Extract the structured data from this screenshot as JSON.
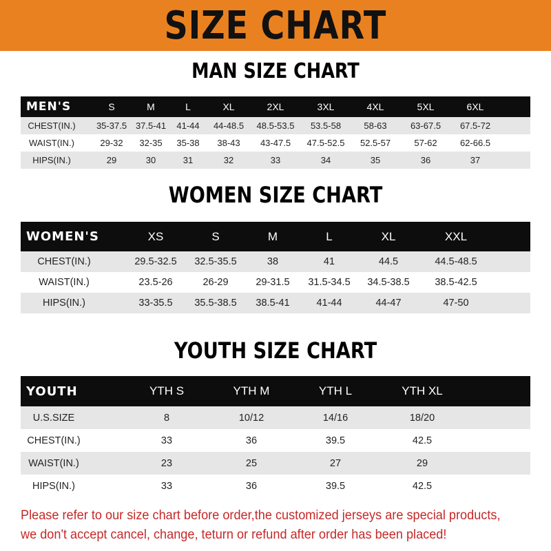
{
  "banner_title": "SIZE CHART",
  "colors": {
    "banner": "#ea8120",
    "header_row": "#0d0d0d",
    "stripe": "#e6e6e6",
    "note": "#c62828"
  },
  "men": {
    "title": "MAN SIZE CHART",
    "header": [
      "MEN'S",
      "S",
      "M",
      "L",
      "XL",
      "2XL",
      "3XL",
      "4XL",
      "5XL",
      "6XL"
    ],
    "rows": [
      [
        "CHEST(IN.)",
        "35-37.5",
        "37.5-41",
        "41-44",
        "44-48.5",
        "48.5-53.5",
        "53.5-58",
        "58-63",
        "63-67.5",
        "67.5-72"
      ],
      [
        "WAIST(IN.)",
        "29-32",
        "32-35",
        "35-38",
        "38-43",
        "43-47.5",
        "47.5-52.5",
        "52.5-57",
        "57-62",
        "62-66.5"
      ],
      [
        "HIPS(IN.)",
        "29",
        "30",
        "31",
        "32",
        "33",
        "34",
        "35",
        "36",
        "37"
      ]
    ]
  },
  "women": {
    "title": "WOMEN SIZE CHART",
    "header": [
      "WOMEN'S",
      "XS",
      "S",
      "M",
      "L",
      "XL",
      "XXL"
    ],
    "rows": [
      [
        "CHEST(IN.)",
        "29.5-32.5",
        "32.5-35.5",
        "38",
        "41",
        "44.5",
        "44.5-48.5"
      ],
      [
        "WAIST(IN.)",
        "23.5-26",
        "26-29",
        "29-31.5",
        "31.5-34.5",
        "34.5-38.5",
        "38.5-42.5"
      ],
      [
        "HIPS(IN.)",
        "33-35.5",
        "35.5-38.5",
        "38.5-41",
        "41-44",
        "44-47",
        "47-50"
      ]
    ]
  },
  "youth": {
    "title": "YOUTH SIZE CHART",
    "header": [
      "YOUTH",
      "YTH S",
      "YTH M",
      "YTH L",
      "YTH XL"
    ],
    "rows": [
      [
        "U.S.SIZE",
        "8",
        "10/12",
        "14/16",
        "18/20"
      ],
      [
        "CHEST(IN.)",
        "33",
        "36",
        "39.5",
        "42.5"
      ],
      [
        "WAIST(IN.)",
        "23",
        "25",
        "27",
        "29"
      ],
      [
        "HIPS(IN.)",
        "33",
        "36",
        "39.5",
        "42.5"
      ]
    ]
  },
  "note": {
    "line1": "Please refer to our size chart before order,the customized jerseys are special products,",
    "line2": "we don't accept cancel, change, teturn or refund after order has been placed!"
  }
}
